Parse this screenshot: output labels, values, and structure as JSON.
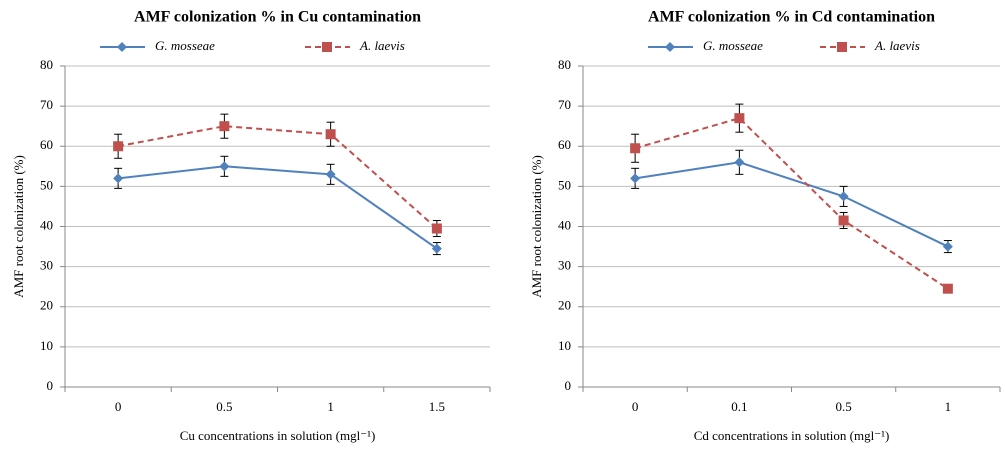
{
  "chart_data": [
    {
      "type": "line",
      "title": "AMF colonization % in Cu contamination",
      "x_label": "Cu concentrations in solution (mgl⁻¹)",
      "y_label": "AMF root colonization (%)",
      "categories": [
        "0",
        "0.5",
        "1",
        "1.5"
      ],
      "ylim": [
        0,
        80
      ],
      "yticks": [
        0,
        10,
        20,
        30,
        40,
        50,
        60,
        70,
        80
      ],
      "grid": true,
      "series": [
        {
          "name": "G. mosseae",
          "color": "#4f81bd",
          "values": [
            52,
            55,
            53,
            34.5
          ],
          "errors": [
            2.5,
            2.5,
            2.5,
            1.5
          ]
        },
        {
          "name": "A. laevis",
          "color": "#c0504d",
          "values": [
            60,
            65,
            63,
            39.5
          ],
          "errors": [
            3,
            3,
            3,
            2
          ]
        }
      ]
    },
    {
      "type": "line",
      "title": "AMF colonization % in Cd contamination",
      "x_label": "Cd concentrations in solution (mgl⁻¹)",
      "y_label": "AMF root colonization (%)",
      "categories": [
        "0",
        "0.1",
        "0.5",
        "1"
      ],
      "ylim": [
        0,
        80
      ],
      "yticks": [
        0,
        10,
        20,
        30,
        40,
        50,
        60,
        70,
        80
      ],
      "grid": true,
      "series": [
        {
          "name": "G. mosseae",
          "color": "#4f81bd",
          "values": [
            52,
            56,
            47.5,
            35
          ],
          "errors": [
            2.5,
            3,
            2.5,
            1.5
          ]
        },
        {
          "name": "A. laevis",
          "color": "#c0504d",
          "values": [
            59.5,
            67,
            41.5,
            24.5
          ],
          "errors": [
            3.5,
            3.5,
            2,
            1
          ]
        }
      ]
    }
  ]
}
